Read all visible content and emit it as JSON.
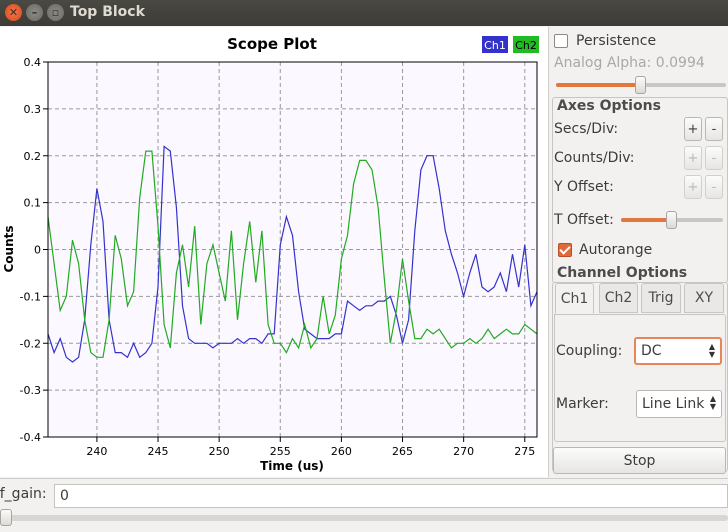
{
  "window": {
    "title": "Top Block"
  },
  "plot": {
    "chart_data": {
      "type": "line",
      "title": "Scope Plot",
      "xlabel": "Time (us)",
      "ylabel": "Counts",
      "xlim": [
        236,
        276
      ],
      "ylim": [
        -0.4,
        0.4
      ],
      "xticks": [
        "240",
        "245",
        "250",
        "255",
        "260",
        "265",
        "270",
        "275"
      ],
      "yticks": [
        "0.4",
        "0.3",
        "0.2",
        "0.1",
        "0",
        "-0.1",
        "-0.2",
        "-0.3",
        "-0.4"
      ],
      "grid": true,
      "legend_position": "top-right",
      "series": [
        {
          "name": "Ch1",
          "color": "#3333cc",
          "x": [
            236,
            236.5,
            237,
            237.5,
            238,
            238.5,
            239,
            239.5,
            240,
            240.5,
            241,
            241.5,
            242,
            242.5,
            243,
            243.5,
            244,
            244.5,
            245,
            245.5,
            246,
            246.5,
            247,
            247.5,
            248,
            248.5,
            249,
            249.5,
            250,
            250.5,
            251,
            251.5,
            252,
            252.5,
            253,
            253.5,
            254,
            254.5,
            255,
            255.5,
            256,
            256.5,
            257,
            257.5,
            258,
            258.5,
            259,
            259.5,
            260,
            260.5,
            261,
            261.5,
            262,
            262.5,
            263,
            263.5,
            264,
            264.5,
            265,
            265.5,
            266,
            266.5,
            267,
            267.5,
            268,
            268.5,
            269,
            269.5,
            270,
            270.5,
            271,
            271.5,
            272,
            272.5,
            273,
            273.5,
            274,
            274.5,
            275,
            275.5,
            276
          ],
          "y": [
            -0.18,
            -0.22,
            -0.19,
            -0.23,
            -0.24,
            -0.23,
            -0.15,
            0.01,
            0.13,
            0.06,
            -0.15,
            -0.22,
            -0.22,
            -0.23,
            -0.2,
            -0.23,
            -0.22,
            -0.2,
            -0.08,
            0.22,
            0.21,
            0.09,
            -0.12,
            -0.19,
            -0.2,
            -0.2,
            -0.2,
            -0.21,
            -0.2,
            -0.2,
            -0.2,
            -0.19,
            -0.2,
            -0.19,
            -0.19,
            -0.2,
            -0.18,
            -0.18,
            0.01,
            0.07,
            0.03,
            -0.09,
            -0.17,
            -0.18,
            -0.19,
            -0.19,
            -0.19,
            -0.18,
            -0.18,
            -0.11,
            -0.12,
            -0.13,
            -0.12,
            -0.12,
            -0.11,
            -0.11,
            -0.1,
            -0.14,
            -0.2,
            -0.15,
            0.04,
            0.17,
            0.2,
            0.2,
            0.13,
            0.04,
            -0.01,
            -0.05,
            -0.1,
            -0.05,
            -0.01,
            -0.08,
            -0.09,
            -0.08,
            -0.05,
            -0.09,
            -0.01,
            -0.08,
            0.01,
            -0.12,
            -0.09
          ]
        },
        {
          "name": "Ch2",
          "color": "#22aa22",
          "x": [
            236,
            236.5,
            237,
            237.5,
            238,
            238.5,
            239,
            239.5,
            240,
            240.5,
            241,
            241.5,
            242,
            242.5,
            243,
            243.5,
            244,
            244.5,
            245,
            245.5,
            246,
            246.5,
            247,
            247.5,
            248,
            248.5,
            249,
            249.5,
            250,
            250.5,
            251,
            251.5,
            252,
            252.5,
            253,
            253.5,
            254,
            254.5,
            255,
            255.5,
            256,
            256.5,
            257,
            257.5,
            258,
            258.5,
            259,
            259.5,
            260,
            260.5,
            261,
            261.5,
            262,
            262.5,
            263,
            263.5,
            264,
            264.5,
            265,
            265.5,
            266,
            266.5,
            267,
            267.5,
            268,
            268.5,
            269,
            269.5,
            270,
            270.5,
            271,
            271.5,
            272,
            272.5,
            273,
            273.5,
            274,
            274.5,
            275,
            275.5,
            276
          ],
          "y": [
            0.07,
            -0.03,
            -0.13,
            -0.1,
            0.02,
            -0.03,
            -0.15,
            -0.22,
            -0.23,
            -0.23,
            -0.15,
            0.03,
            -0.02,
            -0.12,
            -0.09,
            0.11,
            0.21,
            0.21,
            0.05,
            -0.16,
            -0.21,
            -0.05,
            0.01,
            -0.08,
            0.05,
            -0.16,
            -0.03,
            0.01,
            -0.05,
            -0.11,
            0.04,
            -0.15,
            -0.03,
            0.06,
            -0.07,
            0.04,
            -0.16,
            -0.2,
            -0.2,
            -0.22,
            -0.19,
            -0.21,
            -0.16,
            -0.21,
            -0.19,
            -0.1,
            -0.18,
            -0.14,
            -0.02,
            0.03,
            0.14,
            0.19,
            0.19,
            0.17,
            0.09,
            -0.06,
            -0.2,
            -0.13,
            -0.02,
            -0.11,
            -0.19,
            -0.19,
            -0.17,
            -0.18,
            -0.17,
            -0.19,
            -0.21,
            -0.2,
            -0.2,
            -0.19,
            -0.2,
            -0.19,
            -0.17,
            -0.19,
            -0.18,
            -0.17,
            -0.18,
            -0.18,
            -0.16,
            -0.17,
            -0.18
          ]
        }
      ]
    }
  },
  "panel": {
    "persistence_label": "Persistence",
    "persistence_checked": false,
    "analog_alpha_label": "Analog Alpha: 0.0994",
    "analog_alpha_value": 0.0994,
    "axes_options_title": "Axes Options",
    "secs_div_label": "Secs/Div:",
    "counts_div_label": "Counts/Div:",
    "y_offset_label": "Y Offset:",
    "t_offset_label": "T Offset:",
    "t_offset_level": 0.5,
    "plus": "+",
    "minus": "-",
    "autorange_label": "Autorange",
    "autorange_checked": true,
    "channel_options_title": "Channel Options",
    "tabs": [
      "Ch1",
      "Ch2",
      "Trig",
      "XY"
    ],
    "active_tab": "Ch1",
    "coupling_label": "Coupling:",
    "coupling_value": "DC",
    "marker_label": "Marker:",
    "marker_value": "Line Link",
    "stop_label": "Stop"
  },
  "bottom": {
    "rf_gain_label": "rf_gain:",
    "rf_gain_value": "0"
  },
  "colors": {
    "accent": "#e2783e",
    "ch1": "#3333cc",
    "ch2": "#22aa22"
  }
}
